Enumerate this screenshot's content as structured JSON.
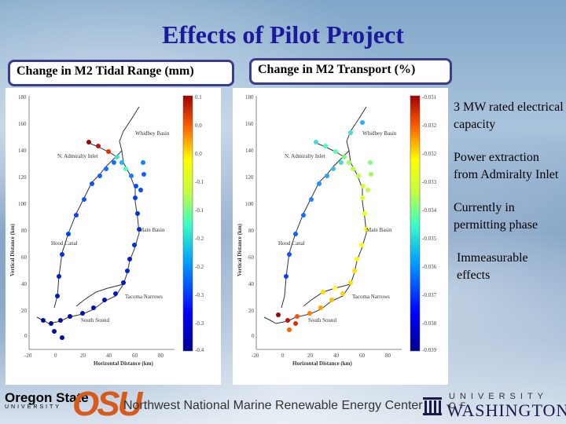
{
  "slide": {
    "title": "Effects of Pilot Project",
    "label_left": "Change in M2 Tidal Range (mm)",
    "label_right": "Change in M2 Transport (%)",
    "bullets": [
      "3 MW rated electrical capacity",
      "Power extraction from Admiralty Inlet",
      "Currently in permitting phase",
      "Immeasurable effects"
    ],
    "footer_center": "Northwest National Marine Renewable Energy Center"
  },
  "logos": {
    "osu_name_line1": "Oregon State",
    "osu_name_line2": "UNIVERSITY",
    "osu_abbrev": "OSU",
    "uw_top": "UNIVERSITY OF",
    "uw_main": "WASHINGTON"
  },
  "maps": {
    "y_axis_label": "Vertical Distance (km)",
    "x_axis_label": "Horizontal Distance (km)",
    "y_ticks": [
      "180",
      "160",
      "140",
      "120",
      "100",
      "80",
      "60",
      "40",
      "20",
      "0"
    ],
    "x_ticks": [
      "-20",
      "0",
      "20",
      "40",
      "60",
      "80"
    ],
    "places": {
      "whidbey": "Whidbey Basin",
      "admiralty": "N. Admiralty Inlet",
      "main": "Main Basin",
      "hood": "Hood Canal",
      "tacoma": "Tacoma Narrows",
      "south": "South Sound"
    },
    "left_colorbar_ticks": [
      "0.1",
      "0.0",
      "0.0",
      "-0.1",
      "-0.1",
      "-0.2",
      "-0.2",
      "-0.3",
      "-0.3",
      "-0.4"
    ],
    "right_colorbar_ticks": [
      "-0.031",
      "-0.032",
      "-0.032",
      "-0.033",
      "-0.034",
      "-0.035",
      "-0.036",
      "-0.037",
      "-0.038",
      "-0.039"
    ]
  },
  "colors": {
    "title": "#1a1a9a",
    "box_border": "#3c3c8c",
    "osu_orange": "#d85a1a"
  }
}
